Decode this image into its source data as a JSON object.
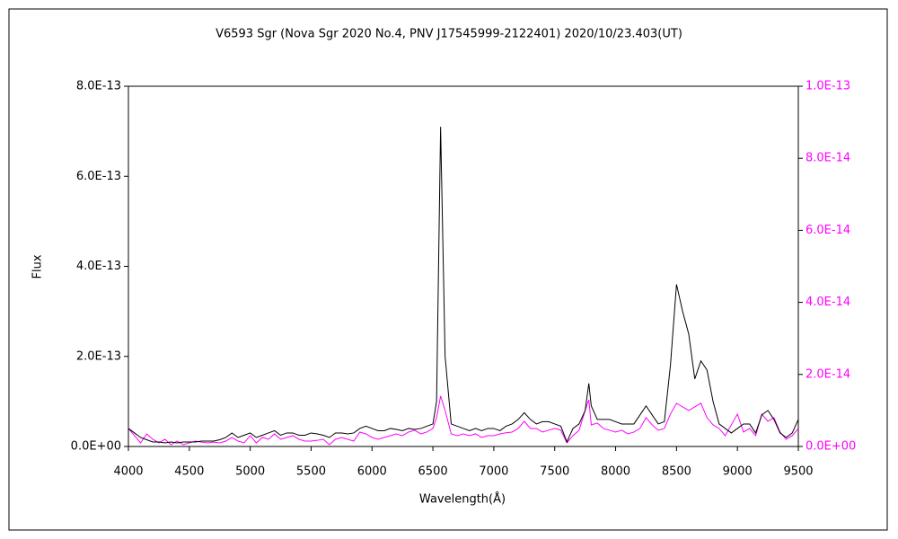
{
  "chart_data": {
    "type": "line",
    "title": "V6593 Sgr (Nova Sgr 2020 No.4, PNV J17545999-2122401)    2020/10/23.403(UT)",
    "xlabel": "Wavelength(Å)",
    "ylabel": "Flux",
    "xlim": [
      4000,
      9500
    ],
    "xticks": [
      4000,
      4500,
      5000,
      5500,
      6000,
      6500,
      7000,
      7500,
      8000,
      8500,
      9000,
      9500
    ],
    "ylim": [
      0,
      8e-13
    ],
    "yticks": [
      {
        "value": 0,
        "label": "0.0E+00"
      },
      {
        "value": 2e-13,
        "label": "2.0E-13"
      },
      {
        "value": 4e-13,
        "label": "4.0E-13"
      },
      {
        "value": 6e-13,
        "label": "6.0E-13"
      },
      {
        "value": 8e-13,
        "label": "8.0E-13"
      }
    ],
    "y2lim": [
      0,
      1e-13
    ],
    "y2ticks": [
      {
        "value": 0,
        "label": "0.0E+00"
      },
      {
        "value": 2e-14,
        "label": "2.0E-14"
      },
      {
        "value": 4e-14,
        "label": "4.0E-14"
      },
      {
        "value": 6e-14,
        "label": "6.0E-14"
      },
      {
        "value": 8e-14,
        "label": "8.0E-14"
      },
      {
        "value": 1e-13,
        "label": "1.0E-13"
      }
    ],
    "y2color": "#ff00ff",
    "grid": false,
    "x": [
      4000,
      4050,
      4100,
      4150,
      4200,
      4250,
      4300,
      4350,
      4400,
      4450,
      4500,
      4550,
      4600,
      4650,
      4700,
      4750,
      4800,
      4850,
      4900,
      4950,
      5000,
      5050,
      5100,
      5150,
      5200,
      5250,
      5300,
      5350,
      5400,
      5450,
      5500,
      5550,
      5600,
      5650,
      5700,
      5750,
      5800,
      5850,
      5900,
      5950,
      6000,
      6050,
      6100,
      6150,
      6200,
      6250,
      6300,
      6350,
      6400,
      6450,
      6500,
      6530,
      6563,
      6600,
      6650,
      6700,
      6750,
      6800,
      6850,
      6900,
      6950,
      7000,
      7050,
      7100,
      7150,
      7200,
      7250,
      7300,
      7350,
      7400,
      7450,
      7500,
      7550,
      7600,
      7650,
      7700,
      7750,
      7780,
      7800,
      7850,
      7900,
      7950,
      8000,
      8050,
      8100,
      8150,
      8200,
      8250,
      8300,
      8350,
      8400,
      8450,
      8500,
      8550,
      8600,
      8650,
      8700,
      8750,
      8800,
      8850,
      8900,
      8950,
      9000,
      9050,
      9100,
      9150,
      9200,
      9250,
      9300,
      9350,
      9400,
      9450,
      9500
    ],
    "series": [
      {
        "color": "#000000",
        "values": [
          4e-14,
          3e-14,
          2e-14,
          1.5e-14,
          1e-14,
          1e-14,
          8e-15,
          1e-14,
          8e-15,
          1e-14,
          1e-14,
          1e-14,
          1.2e-14,
          1.2e-14,
          1.2e-14,
          1.5e-14,
          2e-14,
          3e-14,
          2e-14,
          2.5e-14,
          3e-14,
          2e-14,
          2.5e-14,
          3e-14,
          3.5e-14,
          2.5e-14,
          3e-14,
          3e-14,
          2.5e-14,
          2.5e-14,
          3e-14,
          2.8e-14,
          2.5e-14,
          2e-14,
          3e-14,
          3e-14,
          2.8e-14,
          3e-14,
          4e-14,
          4.5e-14,
          4e-14,
          3.5e-14,
          3.5e-14,
          4e-14,
          3.8e-14,
          3.5e-14,
          4e-14,
          3.8e-14,
          4e-14,
          4.5e-14,
          5e-14,
          1e-13,
          7.1e-13,
          2e-13,
          5e-14,
          4.5e-14,
          4e-14,
          3.5e-14,
          4e-14,
          3.5e-14,
          4e-14,
          4e-14,
          3.5e-14,
          4.5e-14,
          5e-14,
          6e-14,
          7.5e-14,
          6e-14,
          5e-14,
          5.5e-14,
          5.5e-14,
          5e-14,
          4.5e-14,
          1e-14,
          4e-14,
          5e-14,
          8e-14,
          1.4e-13,
          9e-14,
          6e-14,
          6e-14,
          6e-14,
          5.5e-14,
          5e-14,
          5e-14,
          5e-14,
          7e-14,
          9e-14,
          7e-14,
          5e-14,
          5.5e-14,
          1.8e-13,
          3.6e-13,
          3e-13,
          2.5e-13,
          1.5e-13,
          1.9e-13,
          1.7e-13,
          1e-13,
          5e-14,
          4e-14,
          3e-14,
          4e-14,
          5e-14,
          5e-14,
          3e-14,
          7e-14,
          8e-14,
          6e-14,
          3e-14,
          2e-14,
          3e-14,
          6e-14
        ]
      },
      {
        "color": "#ff00ff",
        "axis": "y2",
        "values": [
          5e-15,
          3e-15,
          1e-15,
          3.5e-15,
          2e-15,
          1e-15,
          2e-15,
          5e-16,
          1.5e-15,
          5e-16,
          1e-15,
          1.5e-15,
          1.2e-15,
          1e-15,
          1.2e-15,
          1e-15,
          1.5e-15,
          2.5e-15,
          1.5e-15,
          1e-15,
          3e-15,
          1e-15,
          2.5e-15,
          2e-15,
          3.5e-15,
          2e-15,
          2.5e-15,
          3e-15,
          2e-15,
          1.5e-15,
          1.5e-15,
          1.7e-15,
          2e-15,
          5e-16,
          2e-15,
          2.5e-15,
          2e-15,
          1.5e-15,
          4e-15,
          3.5e-15,
          2.5e-15,
          2e-15,
          2.5e-15,
          3e-15,
          3.5e-15,
          3e-15,
          4e-15,
          4.5e-15,
          3.5e-15,
          4e-15,
          5e-15,
          8e-15,
          1.4e-14,
          1e-14,
          3.5e-15,
          3e-15,
          3.5e-15,
          3e-15,
          3.5e-15,
          2.5e-15,
          3e-15,
          3e-15,
          3.5e-15,
          3.8e-15,
          4e-15,
          5e-15,
          7e-15,
          5e-15,
          5e-15,
          4e-15,
          4.5e-15,
          5e-15,
          4.5e-15,
          1e-15,
          3e-15,
          4.5e-15,
          1e-14,
          1.3e-14,
          6e-15,
          6.5e-15,
          5e-15,
          4.5e-15,
          4e-15,
          4.5e-15,
          3.5e-15,
          4e-15,
          5e-15,
          8e-15,
          6e-15,
          4.5e-15,
          5e-15,
          9e-15,
          1.2e-14,
          1.1e-14,
          1e-14,
          1.1e-14,
          1.2e-14,
          8e-15,
          6e-15,
          5e-15,
          3e-15,
          6e-15,
          9e-15,
          4e-15,
          5e-15,
          3e-15,
          9e-15,
          7e-15,
          8e-15,
          4e-15,
          2e-15,
          3e-15,
          5e-15
        ]
      }
    ]
  }
}
